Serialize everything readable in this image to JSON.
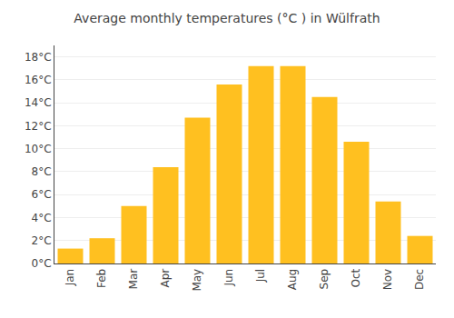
{
  "chart_data": {
    "type": "bar",
    "title": "Average monthly temperatures (°C ) in Wülfrath",
    "categories": [
      "Jan",
      "Feb",
      "Mar",
      "Apr",
      "May",
      "Jun",
      "Jul",
      "Aug",
      "Sep",
      "Oct",
      "Nov",
      "Dec"
    ],
    "values": [
      1.3,
      2.2,
      5.0,
      8.4,
      12.7,
      15.6,
      17.2,
      17.2,
      14.5,
      10.6,
      5.4,
      2.4
    ],
    "color": "#FFC020",
    "ylim": [
      0,
      19
    ],
    "yticks": [
      {
        "value": 0,
        "label": "0°C"
      },
      {
        "value": 2,
        "label": "2°C"
      },
      {
        "value": 4,
        "label": "4°C"
      },
      {
        "value": 6,
        "label": "6°C"
      },
      {
        "value": 8,
        "label": "8°C"
      },
      {
        "value": 10,
        "label": "10°C"
      },
      {
        "value": 12,
        "label": "12°C"
      },
      {
        "value": 14,
        "label": "14°C"
      },
      {
        "value": 16,
        "label": "16°C"
      },
      {
        "value": 18,
        "label": "18°C"
      }
    ],
    "grid": true
  }
}
